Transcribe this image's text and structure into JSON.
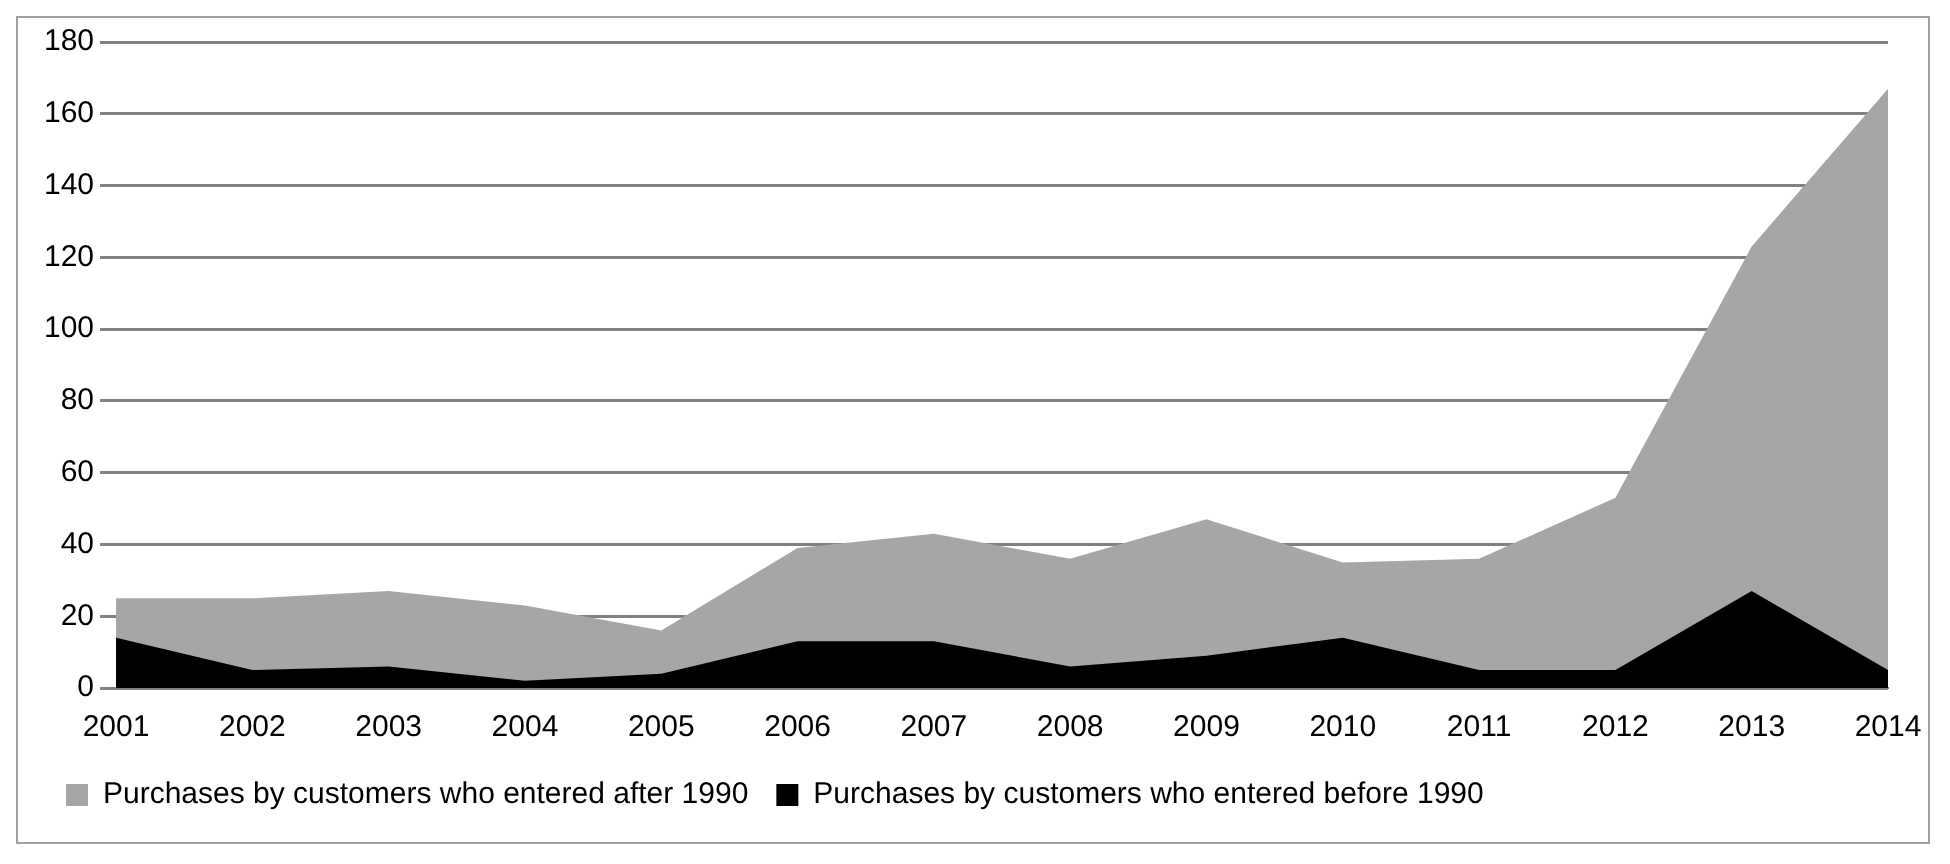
{
  "chart_data": {
    "type": "area",
    "categories": [
      "2001",
      "2002",
      "2003",
      "2004",
      "2005",
      "2006",
      "2007",
      "2008",
      "2009",
      "2010",
      "2011",
      "2012",
      "2013",
      "2014"
    ],
    "series": [
      {
        "name": "Purchases by customers who entered after 1990",
        "color": "#a6a6a6",
        "values": [
          25,
          25,
          27,
          23,
          16,
          39,
          43,
          36,
          47,
          35,
          36,
          53,
          123,
          167
        ]
      },
      {
        "name": "Purchases by customers who entered before 1990",
        "color": "#000000",
        "values": [
          14,
          5,
          6,
          2,
          4,
          13,
          13,
          6,
          9,
          14,
          5,
          5,
          27,
          5
        ]
      }
    ],
    "ylim": [
      0,
      180
    ],
    "yticks": [
      0,
      20,
      40,
      60,
      80,
      100,
      120,
      140,
      160,
      180
    ],
    "grid": "y",
    "legend": "bottom"
  }
}
